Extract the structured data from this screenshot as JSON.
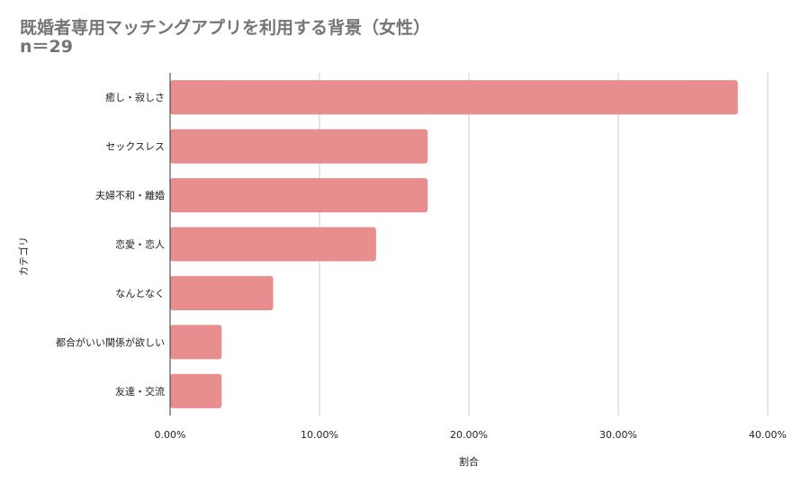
{
  "chart_data": {
    "type": "bar",
    "orientation": "horizontal",
    "title": "既婚者専用マッチングアプリを利用する背景（女性）",
    "subtitle": "n＝29",
    "xlabel": "割合",
    "ylabel": "カテゴリ",
    "xlim": [
      0,
      0.4
    ],
    "xticks": [
      0,
      0.1,
      0.2,
      0.3,
      0.4
    ],
    "xtick_labels": [
      "0.00%",
      "10.00%",
      "20.00%",
      "30.00%",
      "40.00%"
    ],
    "categories": [
      "癒し・寂しさ",
      "セックスレス",
      "夫婦不和・離婚",
      "恋愛・恋人",
      "なんとなく",
      "都合がいい関係が欲しい",
      "友達・交流"
    ],
    "values": [
      0.38,
      0.1724,
      0.1724,
      0.1379,
      0.069,
      0.0345,
      0.0345
    ],
    "bar_color": "#e88e8e",
    "grid": true,
    "legend": "none"
  }
}
